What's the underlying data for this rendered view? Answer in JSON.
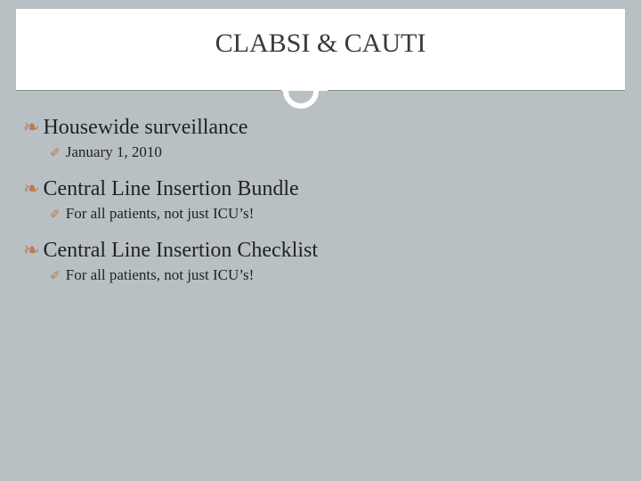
{
  "slide": {
    "title": "CLABSI & CAUTI",
    "accent_color": "#bb7a57",
    "background_color": "#b8c0c4",
    "header_background": "#ffffff",
    "text_color": "#222222",
    "title_fontsize": 30,
    "main_fontsize": 24,
    "sub_fontsize": 17,
    "bullet_glyph": "❧",
    "sub_bullet_glyph": "✐",
    "items": [
      {
        "label": "Housewide surveillance",
        "sub": "January 1, 2010"
      },
      {
        "label": "Central Line Insertion Bundle",
        "sub": "For all patients, not just ICU’s!"
      },
      {
        "label": "Central Line Insertion Checklist",
        "sub": "For all patients, not just ICU’s!"
      }
    ]
  }
}
